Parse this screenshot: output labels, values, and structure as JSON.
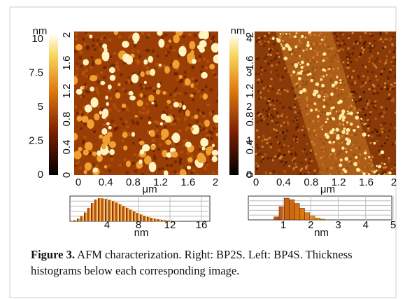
{
  "panels": [
    {
      "unit": "nm",
      "scale_ticks": [
        "10",
        "7.5",
        "5",
        "2.5",
        "0"
      ],
      "height_ticks": [
        "2",
        "1.6",
        "1.2",
        "0.8",
        "0.4",
        "0"
      ],
      "x_ticks": [
        "0",
        "0.4",
        "0.8",
        "1.2",
        "1.6",
        "2"
      ],
      "x_unit": "μm",
      "hist_ticks": [
        "4",
        "8",
        "12",
        "16"
      ],
      "hist_unit": "nm"
    },
    {
      "unit": "nm",
      "scale_ticks": [
        "4",
        "3",
        "2",
        "1",
        "0"
      ],
      "height_ticks": [
        "2",
        "1.6",
        "1.2",
        "0.8",
        "0.4",
        "0"
      ],
      "x_ticks": [
        "0",
        "0.4",
        "0.8",
        "1.2",
        "1.6",
        "2"
      ],
      "x_unit": "μm",
      "hist_ticks": [
        "1",
        "2",
        "3",
        "4",
        "5"
      ],
      "hist_unit": "nm"
    }
  ],
  "caption": {
    "label": "Figure 3.",
    "text": "AFM characterization. Right: BP2S. Left: BP4S. Thickness histograms below each corresponding image."
  }
}
